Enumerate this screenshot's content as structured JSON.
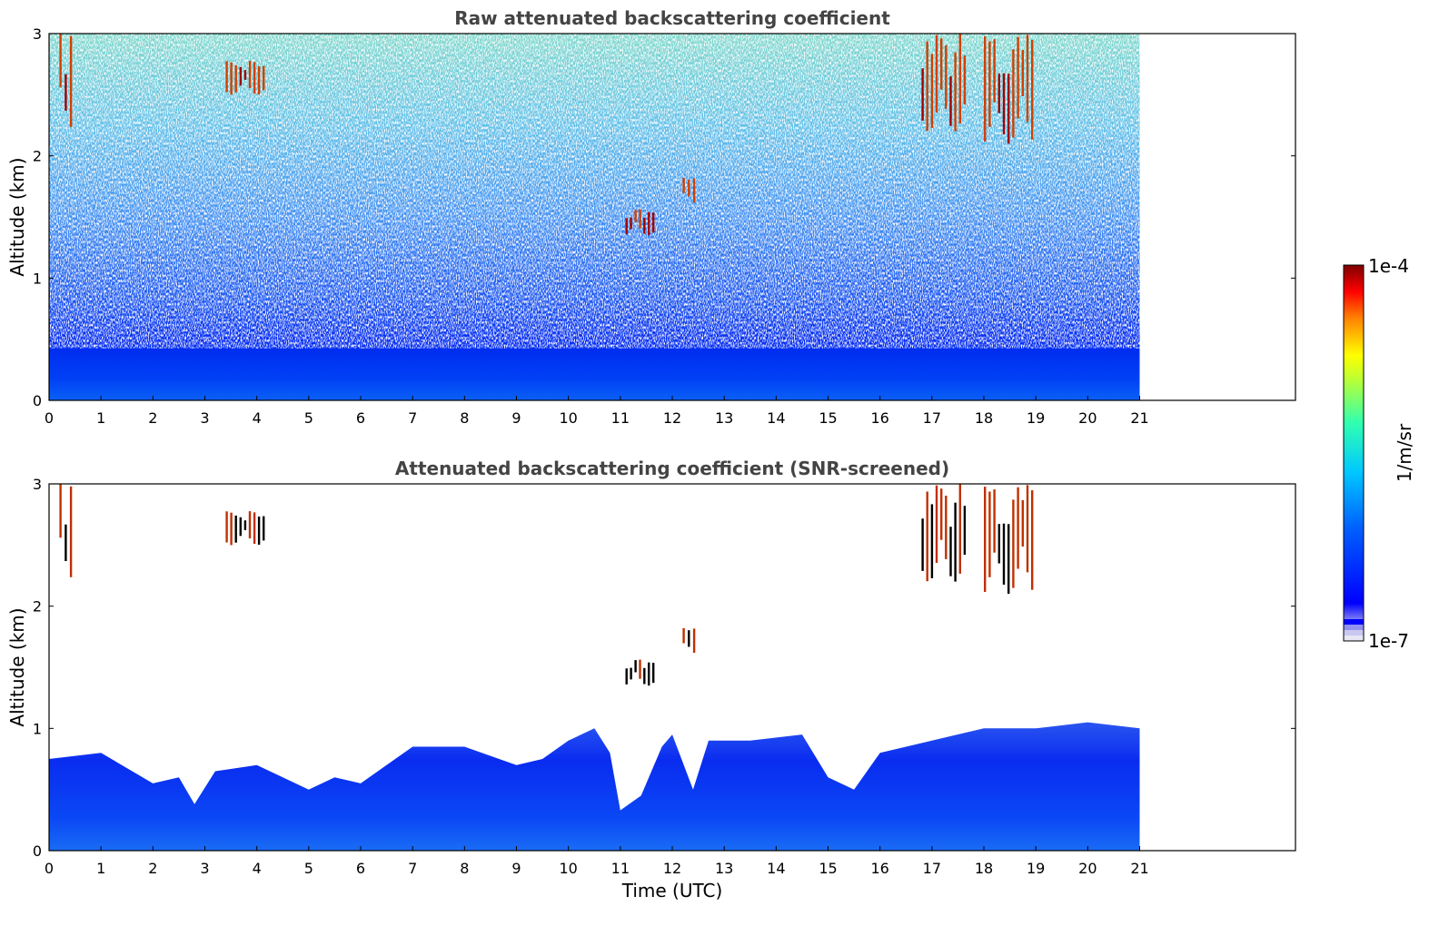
{
  "chart_data": [
    {
      "type": "heatmap",
      "title": "Raw attenuated backscattering coefficient",
      "xlabel": "",
      "ylabel": "Altitude (km)",
      "xlim": [
        0,
        24
      ],
      "ylim": [
        0,
        3
      ],
      "data_x_range": [
        0,
        21
      ],
      "x_ticks": [
        "0",
        "1",
        "2",
        "3",
        "4",
        "5",
        "6",
        "7",
        "8",
        "9",
        "10",
        "11",
        "12",
        "13",
        "14",
        "15",
        "16",
        "17",
        "18",
        "19",
        "20",
        "21"
      ],
      "y_ticks": [
        "0",
        "1",
        "2",
        "3"
      ],
      "background_layer": {
        "top_km": 0.5,
        "description_level": "moderate"
      },
      "clouds": [
        {
          "t_start": 0.2,
          "t_end": 0.5,
          "z_bottom": 2.2,
          "z_top": 3.0
        },
        {
          "t_start": 3.4,
          "t_end": 4.2,
          "z_bottom": 2.5,
          "z_top": 2.8
        },
        {
          "t_start": 11.1,
          "t_end": 11.7,
          "z_bottom": 1.35,
          "z_top": 1.6
        },
        {
          "t_start": 12.2,
          "t_end": 12.5,
          "z_bottom": 1.6,
          "z_top": 1.85
        },
        {
          "t_start": 16.8,
          "t_end": 17.7,
          "z_bottom": 2.2,
          "z_top": 3.0
        },
        {
          "t_start": 18.0,
          "t_end": 19.0,
          "z_bottom": 2.1,
          "z_top": 3.0
        }
      ]
    },
    {
      "type": "heatmap",
      "title": "Attenuated backscattering coefficient (SNR-screened)",
      "xlabel": "Time (UTC)",
      "ylabel": "Altitude (km)",
      "xlim": [
        0,
        24
      ],
      "ylim": [
        0,
        3
      ],
      "data_x_range": [
        0,
        21
      ],
      "x_ticks": [
        "0",
        "1",
        "2",
        "3",
        "4",
        "5",
        "6",
        "7",
        "8",
        "9",
        "10",
        "11",
        "12",
        "13",
        "14",
        "15",
        "16",
        "17",
        "18",
        "19",
        "20",
        "21"
      ],
      "y_ticks": [
        "0",
        "1",
        "2",
        "3"
      ],
      "boundary_layer_top_km": [
        {
          "t": 0.0,
          "z": 0.75
        },
        {
          "t": 1.0,
          "z": 0.8
        },
        {
          "t": 2.0,
          "z": 0.55
        },
        {
          "t": 2.5,
          "z": 0.6
        },
        {
          "t": 2.8,
          "z": 0.38
        },
        {
          "t": 3.2,
          "z": 0.65
        },
        {
          "t": 4.0,
          "z": 0.7
        },
        {
          "t": 4.5,
          "z": 0.6
        },
        {
          "t": 5.0,
          "z": 0.5
        },
        {
          "t": 5.5,
          "z": 0.6
        },
        {
          "t": 6.0,
          "z": 0.55
        },
        {
          "t": 7.0,
          "z": 0.85
        },
        {
          "t": 8.0,
          "z": 0.85
        },
        {
          "t": 9.0,
          "z": 0.7
        },
        {
          "t": 9.5,
          "z": 0.75
        },
        {
          "t": 10.0,
          "z": 0.9
        },
        {
          "t": 10.5,
          "z": 1.0
        },
        {
          "t": 10.8,
          "z": 0.8
        },
        {
          "t": 11.0,
          "z": 0.33
        },
        {
          "t": 11.4,
          "z": 0.45
        },
        {
          "t": 11.8,
          "z": 0.85
        },
        {
          "t": 12.0,
          "z": 0.95
        },
        {
          "t": 12.4,
          "z": 0.5
        },
        {
          "t": 12.7,
          "z": 0.9
        },
        {
          "t": 13.5,
          "z": 0.9
        },
        {
          "t": 14.5,
          "z": 0.95
        },
        {
          "t": 15.0,
          "z": 0.6
        },
        {
          "t": 15.5,
          "z": 0.5
        },
        {
          "t": 16.0,
          "z": 0.8
        },
        {
          "t": 17.0,
          "z": 0.9
        },
        {
          "t": 18.0,
          "z": 1.0
        },
        {
          "t": 19.0,
          "z": 1.0
        },
        {
          "t": 20.0,
          "z": 1.05
        },
        {
          "t": 21.0,
          "z": 1.0
        }
      ],
      "clouds": [
        {
          "t_start": 0.2,
          "t_end": 0.5,
          "z_bottom": 2.2,
          "z_top": 3.0
        },
        {
          "t_start": 3.4,
          "t_end": 4.2,
          "z_bottom": 2.5,
          "z_top": 2.8
        },
        {
          "t_start": 11.1,
          "t_end": 11.7,
          "z_bottom": 1.35,
          "z_top": 1.6
        },
        {
          "t_start": 12.2,
          "t_end": 12.5,
          "z_bottom": 1.6,
          "z_top": 1.85
        },
        {
          "t_start": 16.8,
          "t_end": 17.7,
          "z_bottom": 2.2,
          "z_top": 3.0
        },
        {
          "t_start": 18.0,
          "t_end": 19.0,
          "z_bottom": 2.1,
          "z_top": 3.0
        }
      ]
    }
  ],
  "colorbar": {
    "label": "1/m/sr",
    "max_label": "1e-4",
    "min_label": "1e-7",
    "scale": "log",
    "colormap": "jet",
    "colors": [
      "#e6e6f5",
      "#c8c8f0",
      "#9090f0",
      "#0000ff",
      "#0040ff",
      "#0080ff",
      "#00c0ff",
      "#00e0e0",
      "#40ff80",
      "#a0ff40",
      "#ffff00",
      "#ffc000",
      "#ff6000",
      "#ff0000",
      "#c00000",
      "#7f0000"
    ]
  }
}
